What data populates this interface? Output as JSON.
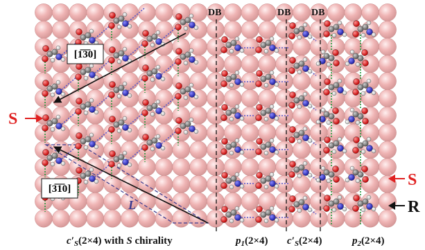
{
  "figure": {
    "colors": {
      "surface_atom": "#efb4b4",
      "surface_atom_highlight": "#fff0f0",
      "surface_atom_edge": "#c98a8a",
      "oxygen": "#e01818",
      "nitrogen": "#2a2ad0",
      "carbon": "#8a8a8a",
      "hydrogen": "#f4f4f4",
      "hbond_green": "#1f9a3a",
      "hbond_blue": "#5a5acc",
      "label_red": "#e02020",
      "label_black": "#111111",
      "domain_line": "#111111",
      "unit_cell_dash": "#3b3b8f"
    },
    "direction_labels": {
      "upper": {
        "text": "[1̅3̅0]"
      },
      "lower": {
        "text": "[3̅1̅0]"
      }
    },
    "domain_boundaries": [
      {
        "label": "DB"
      },
      {
        "label": "DB"
      },
      {
        "label": "DB"
      }
    ],
    "chirality_markers": [
      {
        "label": "S",
        "color": "#e02020",
        "side": "left"
      },
      {
        "label": "S",
        "color": "#e02020",
        "side": "right"
      },
      {
        "label": "R",
        "color": "#111111",
        "side": "right"
      }
    ],
    "unit_cell_label": "L",
    "captions": [
      {
        "base": "c′",
        "sub": "S",
        "rest": "(2×4) with ",
        "italic": "S",
        "tail": " chirality"
      },
      {
        "base": "p",
        "sub": "1",
        "rest": "(2×4)"
      },
      {
        "base": "c′",
        "sub": "S",
        "rest": "(2×4)"
      },
      {
        "base": "p",
        "sub": "2",
        "rest": "(2×4)"
      }
    ]
  }
}
